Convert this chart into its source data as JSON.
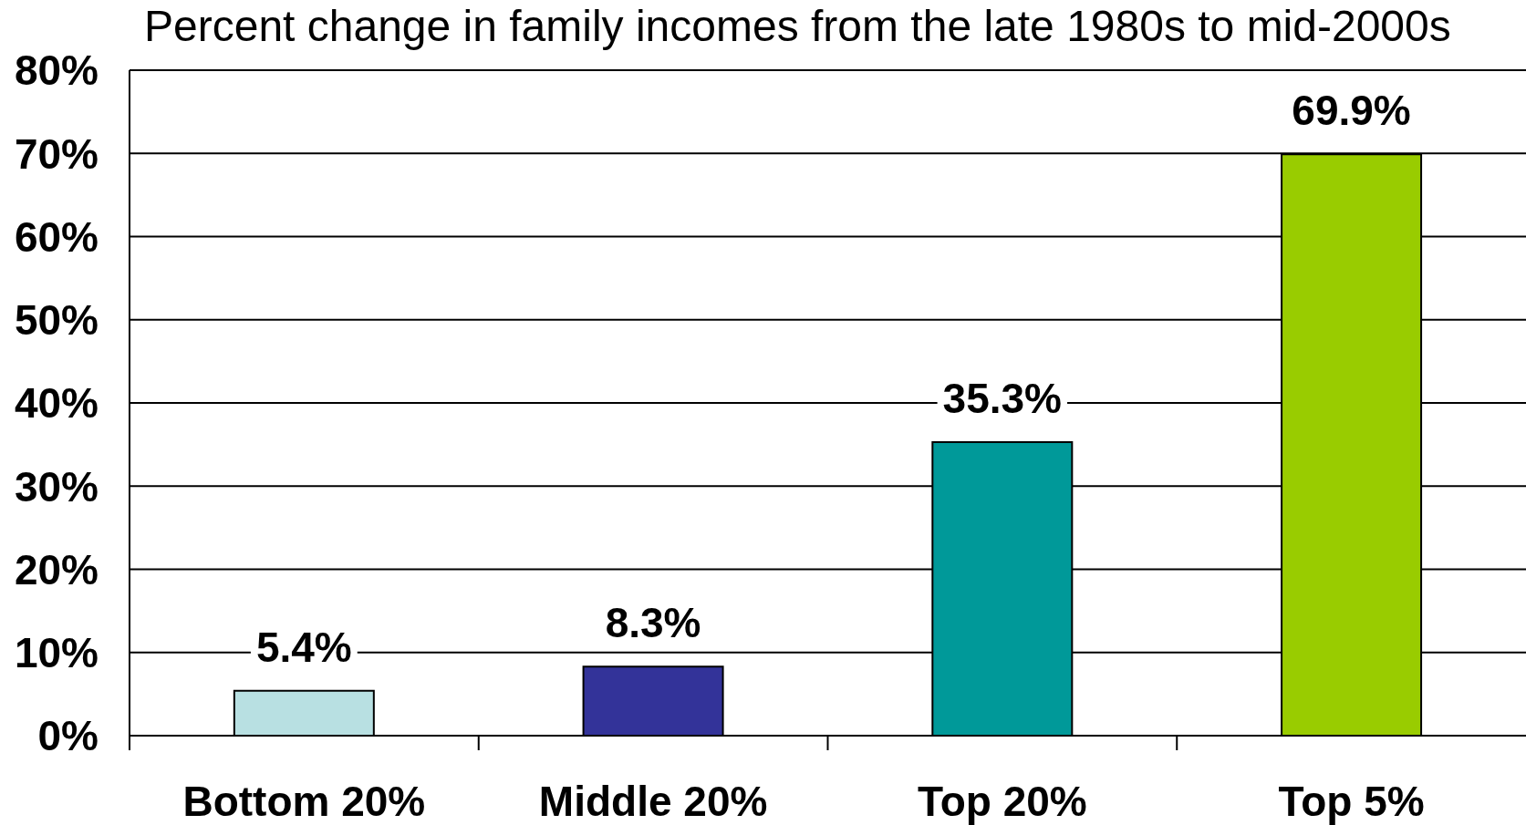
{
  "chart_data": {
    "type": "bar",
    "title": "Percent change in family incomes from the late 1980s to mid-2000s",
    "categories": [
      "Bottom 20%",
      "Middle 20%",
      "Top 20%",
      "Top 5%"
    ],
    "values": [
      5.4,
      8.3,
      35.3,
      69.9
    ],
    "colors": [
      "#b8e0e2",
      "#333399",
      "#009999",
      "#99cc00"
    ],
    "value_labels": [
      "5.4%",
      "8.3%",
      "35.3%",
      "69.9%"
    ],
    "ylim": [
      0,
      80
    ],
    "yticks": [
      {
        "value": 0,
        "label": "0%"
      },
      {
        "value": 10,
        "label": "10%"
      },
      {
        "value": 20,
        "label": "20%"
      },
      {
        "value": 30,
        "label": "30%"
      },
      {
        "value": 40,
        "label": "40%"
      },
      {
        "value": 50,
        "label": "50%"
      },
      {
        "value": 60,
        "label": "60%"
      },
      {
        "value": 70,
        "label": "70%"
      },
      {
        "value": 80,
        "label": "80%"
      }
    ],
    "grid": "y"
  }
}
